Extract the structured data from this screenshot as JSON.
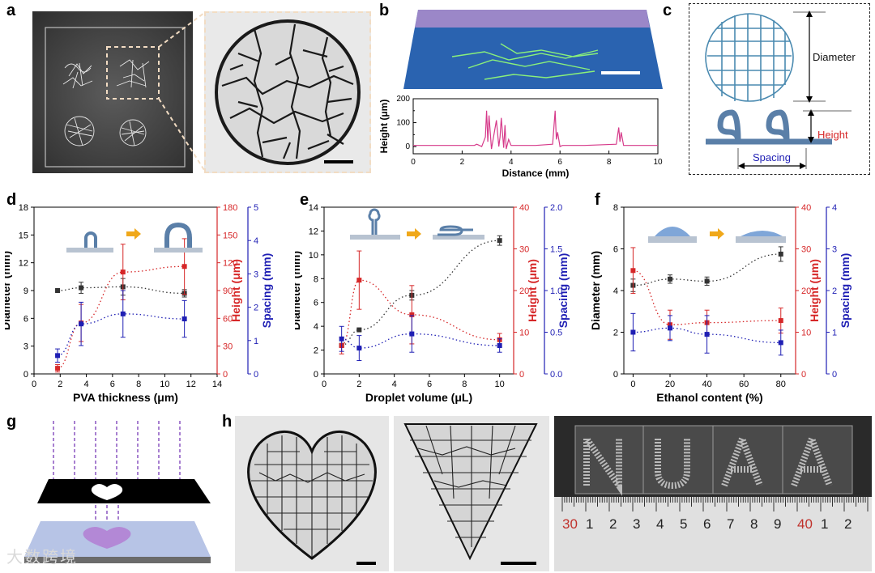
{
  "panels": {
    "a": "a",
    "b": "b",
    "c": "c",
    "d": "d",
    "e": "e",
    "f": "f",
    "g": "g",
    "h": "h"
  },
  "panel_c": {
    "diameter_label": "Diameter",
    "height_label": "Height",
    "spacing_label": "Spacing"
  },
  "ruler_labels": [
    "30",
    "1",
    "2",
    "3",
    "4",
    "5",
    "6",
    "7",
    "8",
    "9",
    "40",
    "1",
    "2"
  ],
  "ruler_red_labels": [
    "30",
    "40"
  ],
  "letters_on_glass": "NUAA",
  "watermark": "大数跨境",
  "colors": {
    "black_series": "#333333",
    "red_series": "#d62728",
    "blue_series": "#1f1fb4",
    "profile_line": "#d63a8a",
    "panel_b_surface": "#2a63b0"
  },
  "chart_data": [
    {
      "panel": "b",
      "type": "line",
      "xlabel": "Distance (mm)",
      "ylabel": "Height (μm)",
      "xlim": [
        0,
        10
      ],
      "ylim": [
        -30,
        200
      ],
      "xticks": [
        "0",
        "2",
        "4",
        "6",
        "8",
        "10"
      ],
      "yticks": [
        "0",
        "100",
        "200"
      ],
      "yticks_minor": [
        "50",
        "150"
      ],
      "series": [
        {
          "x": [
            0,
            2.5,
            2.6,
            2.8,
            2.95,
            3.0,
            3.05,
            3.1,
            3.2,
            3.4,
            3.5,
            3.55,
            3.6,
            3.7,
            3.75,
            3.8,
            3.9,
            4.0,
            5.0,
            5.7,
            5.8,
            5.85,
            5.9,
            6.0,
            6.1,
            7.0,
            8.3,
            8.4,
            8.45,
            8.5,
            8.6,
            10
          ],
          "y": [
            5,
            5,
            10,
            0,
            40,
            150,
            20,
            130,
            -10,
            110,
            0,
            40,
            120,
            -5,
            90,
            -10,
            30,
            5,
            5,
            10,
            150,
            30,
            60,
            0,
            5,
            5,
            10,
            80,
            20,
            60,
            5,
            5
          ]
        }
      ]
    },
    {
      "panel": "d",
      "type": "scatter",
      "xlabel": "PVA thickness (μm)",
      "xlim": [
        0,
        14
      ],
      "xticks": [
        "0",
        "2",
        "4",
        "6",
        "8",
        "10",
        "12",
        "14"
      ],
      "axes": [
        {
          "label": "Diameter (mm)",
          "side": "left",
          "ylim": [
            0,
            18
          ],
          "ticks": [
            "0",
            "3",
            "6",
            "9",
            "12",
            "15",
            "18"
          ],
          "color": "#000000"
        },
        {
          "label": "Height (μm)",
          "side": "right",
          "ylim": [
            0,
            180
          ],
          "ticks": [
            "0",
            "30",
            "60",
            "90",
            "120",
            "150",
            "180"
          ],
          "color": "#d62728"
        },
        {
          "label": "Spacing (mm)",
          "side": "right-outer",
          "ylim": [
            0,
            5
          ],
          "ticks": [
            "0",
            "1",
            "2",
            "3",
            "4",
            "5"
          ],
          "color": "#1f1fb4"
        }
      ],
      "series": [
        {
          "axis": 0,
          "color": "#333333",
          "x": [
            1.8,
            3.6,
            6.8,
            11.5
          ],
          "y": [
            9.0,
            9.3,
            9.4,
            8.7
          ],
          "err": [
            0.1,
            0.6,
            0.9,
            0.4
          ]
        },
        {
          "axis": 1,
          "color": "#d62728",
          "x": [
            1.8,
            3.6,
            6.8,
            11.5
          ],
          "y": [
            6,
            55,
            110,
            116
          ],
          "err": [
            4,
            20,
            30,
            30
          ]
        },
        {
          "axis": 2,
          "color": "#1f1fb4",
          "x": [
            1.8,
            3.6,
            6.8,
            11.5
          ],
          "y": [
            0.55,
            1.5,
            1.8,
            1.65
          ],
          "err": [
            0.2,
            0.65,
            0.7,
            0.55
          ]
        }
      ]
    },
    {
      "panel": "e",
      "type": "scatter",
      "xlabel": "Droplet volume (μL)",
      "xlim": [
        0,
        10.8
      ],
      "xticks": [
        "0",
        "2",
        "4",
        "6",
        "8",
        "10"
      ],
      "axes": [
        {
          "label": "Diameter (mm)",
          "side": "left",
          "ylim": [
            0,
            14
          ],
          "ticks": [
            "0",
            "2",
            "4",
            "6",
            "8",
            "10",
            "12",
            "14"
          ],
          "color": "#000000"
        },
        {
          "label": "Height (μm)",
          "side": "right",
          "ylim": [
            0,
            40
          ],
          "ticks": [
            "0",
            "10",
            "20",
            "30",
            "40"
          ],
          "color": "#d62728"
        },
        {
          "label": "Spacing (mm)",
          "side": "right-outer",
          "ylim": [
            0,
            2
          ],
          "ticks": [
            "0.0",
            "0.5",
            "1.0",
            "1.5",
            "2.0"
          ],
          "color": "#1f1fb4"
        }
      ],
      "series": [
        {
          "axis": 0,
          "color": "#333333",
          "x": [
            1,
            2,
            5,
            10
          ],
          "y": [
            2.4,
            3.7,
            6.6,
            11.2
          ],
          "err": [
            0.1,
            0.1,
            0.4,
            0.4
          ]
        },
        {
          "axis": 1,
          "color": "#d62728",
          "x": [
            1,
            2,
            5,
            10
          ],
          "y": [
            6.8,
            22.5,
            14.2,
            8.2
          ],
          "err": [
            2,
            7,
            7,
            1.5
          ]
        },
        {
          "axis": 2,
          "color": "#1f1fb4",
          "x": [
            1,
            2,
            5,
            10
          ],
          "y": [
            0.42,
            0.31,
            0.48,
            0.34
          ],
          "err": [
            0.15,
            0.15,
            0.22,
            0.08
          ]
        }
      ]
    },
    {
      "panel": "f",
      "type": "scatter",
      "xlabel": "Ethanol content (%)",
      "xlim": [
        -5,
        88
      ],
      "xticks": [
        "0",
        "20",
        "40",
        "60",
        "80"
      ],
      "axes": [
        {
          "label": "Diameter (mm)",
          "side": "left",
          "ylim": [
            0,
            8
          ],
          "ticks": [
            "0",
            "2",
            "4",
            "6",
            "8"
          ],
          "color": "#000000"
        },
        {
          "label": "Height (μm)",
          "side": "right",
          "ylim": [
            0,
            40
          ],
          "ticks": [
            "0",
            "10",
            "20",
            "30",
            "40"
          ],
          "color": "#d62728"
        },
        {
          "label": "Spacing (mm)",
          "side": "right-outer",
          "ylim": [
            0,
            4
          ],
          "ticks": [
            "0",
            "1",
            "2",
            "3",
            "4"
          ],
          "color": "#1f1fb4"
        }
      ],
      "series": [
        {
          "axis": 0,
          "color": "#333333",
          "x": [
            0,
            20,
            40,
            80
          ],
          "y": [
            4.25,
            4.55,
            4.45,
            5.75
          ],
          "err": [
            0.3,
            0.2,
            0.2,
            0.35
          ]
        },
        {
          "axis": 1,
          "color": "#d62728",
          "x": [
            0,
            20,
            40,
            80
          ],
          "y": [
            24.8,
            11.8,
            12.3,
            12.8
          ],
          "err": [
            5.5,
            3.5,
            3,
            3
          ]
        },
        {
          "axis": 2,
          "color": "#1f1fb4",
          "x": [
            0,
            20,
            40,
            80
          ],
          "y": [
            1.0,
            1.1,
            0.95,
            0.75
          ],
          "err": [
            0.45,
            0.3,
            0.45,
            0.3
          ]
        }
      ]
    }
  ]
}
